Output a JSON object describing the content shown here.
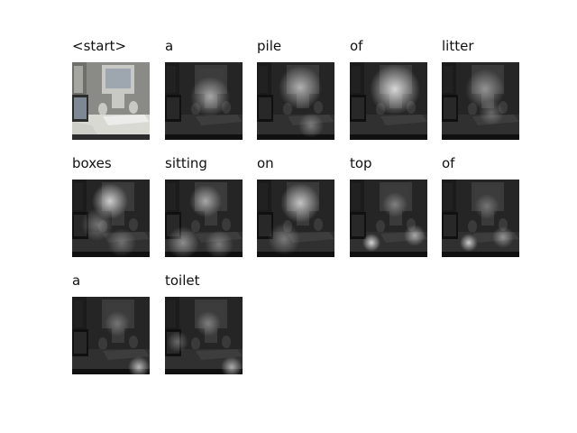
{
  "figure": {
    "frames": [
      {
        "word": "<start>",
        "kind": "original"
      },
      {
        "word": "a",
        "kind": "attention"
      },
      {
        "word": "pile",
        "kind": "attention"
      },
      {
        "word": "of",
        "kind": "attention"
      },
      {
        "word": "litter",
        "kind": "attention"
      },
      {
        "word": "boxes",
        "kind": "attention"
      },
      {
        "word": "sitting",
        "kind": "attention"
      },
      {
        "word": "on",
        "kind": "attention"
      },
      {
        "word": "top",
        "kind": "attention"
      },
      {
        "word": "of",
        "kind": "attention"
      },
      {
        "word": "a",
        "kind": "attention"
      },
      {
        "word": "toilet",
        "kind": "attention"
      }
    ]
  }
}
